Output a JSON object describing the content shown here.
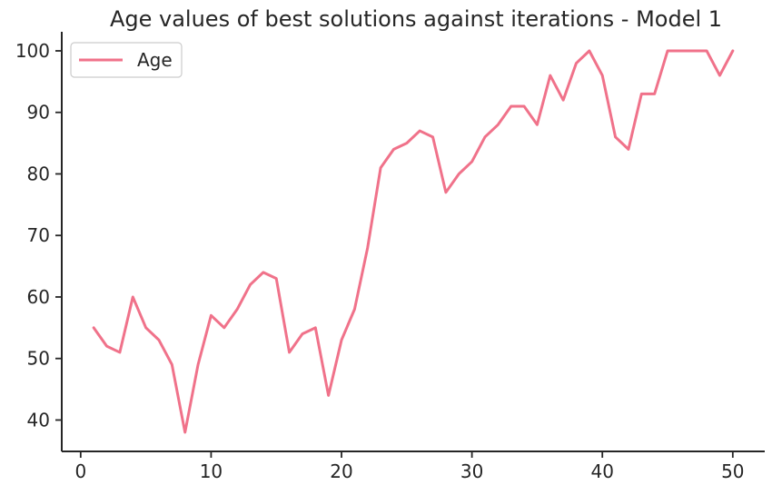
{
  "chart_data": {
    "type": "line",
    "title": "Age values of best solutions against iterations - Model 1",
    "xlabel": "",
    "ylabel": "",
    "x": [
      1,
      2,
      3,
      4,
      5,
      6,
      7,
      8,
      9,
      10,
      11,
      12,
      13,
      14,
      15,
      16,
      17,
      18,
      19,
      20,
      21,
      22,
      23,
      24,
      25,
      26,
      27,
      28,
      29,
      30,
      31,
      32,
      33,
      34,
      35,
      36,
      37,
      38,
      39,
      40,
      41,
      42,
      43,
      44,
      45,
      46,
      47,
      48,
      49,
      50
    ],
    "series": [
      {
        "name": "Age",
        "color": "#f0728a",
        "values": [
          55,
          52,
          51,
          60,
          55,
          53,
          49,
          38,
          49,
          57,
          55,
          58,
          62,
          64,
          63,
          51,
          54,
          55,
          44,
          53,
          58,
          68,
          81,
          84,
          85,
          87,
          86,
          77,
          80,
          82,
          86,
          88,
          91,
          91,
          88,
          96,
          92,
          98,
          100,
          96,
          86,
          84,
          93,
          93,
          100,
          100,
          100,
          100,
          96,
          100
        ]
      }
    ],
    "xlim": [
      -1.45,
      52.45
    ],
    "ylim": [
      34.9,
      103.1
    ],
    "xticks": [
      0,
      10,
      20,
      30,
      40,
      50
    ],
    "yticks": [
      40,
      50,
      60,
      70,
      80,
      90,
      100
    ],
    "grid": false,
    "legend_position": "top-left"
  }
}
